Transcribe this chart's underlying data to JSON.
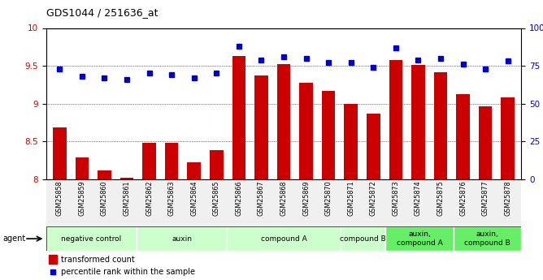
{
  "title": "GDS1044 / 251636_at",
  "samples": [
    "GSM25858",
    "GSM25859",
    "GSM25860",
    "GSM25861",
    "GSM25862",
    "GSM25863",
    "GSM25864",
    "GSM25865",
    "GSM25866",
    "GSM25867",
    "GSM25868",
    "GSM25869",
    "GSM25870",
    "GSM25871",
    "GSM25872",
    "GSM25873",
    "GSM25874",
    "GSM25875",
    "GSM25876",
    "GSM25877",
    "GSM25878"
  ],
  "bar_values": [
    8.69,
    8.29,
    8.12,
    8.02,
    8.48,
    8.48,
    8.22,
    8.38,
    9.63,
    9.37,
    9.52,
    9.28,
    9.17,
    9.0,
    8.87,
    9.58,
    9.51,
    9.41,
    9.13,
    8.96,
    9.08
  ],
  "dot_values": [
    73,
    68,
    67,
    66,
    70,
    69,
    67,
    70,
    88,
    79,
    81,
    80,
    77,
    77,
    74,
    87,
    79,
    80,
    76,
    73,
    78
  ],
  "bar_color": "#cc0000",
  "dot_color": "#0000cc",
  "ylim_left": [
    8.0,
    10.0
  ],
  "ylim_right": [
    0,
    100
  ],
  "yticks_left": [
    8.0,
    8.5,
    9.0,
    9.5,
    10.0
  ],
  "ytick_labels_left": [
    "8",
    "8.5",
    "9",
    "9.5",
    "10"
  ],
  "yticks_right": [
    0,
    25,
    50,
    75,
    100
  ],
  "ytick_labels_right": [
    "0",
    "25",
    "50",
    "75",
    "100%"
  ],
  "groups": [
    {
      "label": "negative control",
      "start": 0,
      "end": 3,
      "color": "#ccffcc"
    },
    {
      "label": "auxin",
      "start": 4,
      "end": 7,
      "color": "#ccffcc"
    },
    {
      "label": "compound A",
      "start": 8,
      "end": 12,
      "color": "#ccffcc"
    },
    {
      "label": "compound B",
      "start": 13,
      "end": 14,
      "color": "#ccffcc"
    },
    {
      "label": "auxin,\ncompound A",
      "start": 15,
      "end": 17,
      "color": "#66ee66"
    },
    {
      "label": "auxin,\ncompound B",
      "start": 18,
      "end": 20,
      "color": "#66ee66"
    }
  ],
  "agent_label": "agent",
  "legend_bar_label": "transformed count",
  "legend_dot_label": "percentile rank within the sample",
  "background_color": "#f0f0f0"
}
